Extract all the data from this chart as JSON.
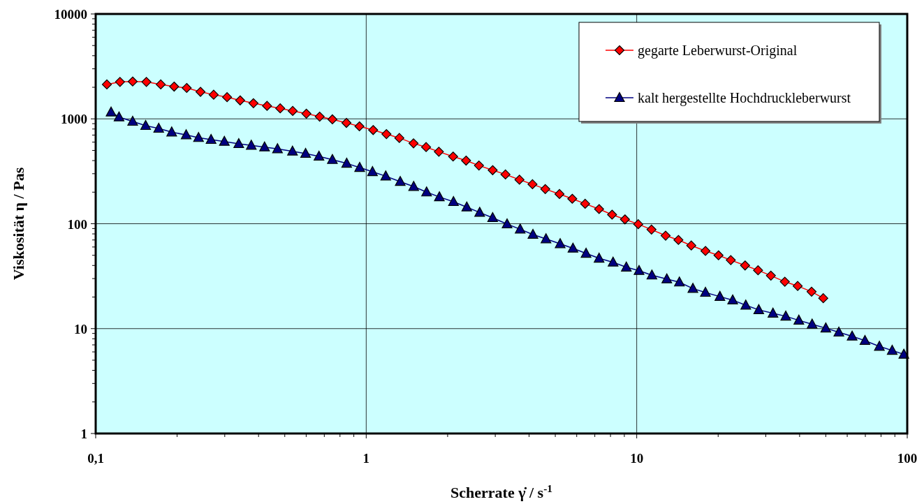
{
  "chart_data": {
    "type": "line",
    "xlabel": "Scherrate γ̇  /  s$^{-1}$",
    "ylabel": "Viskosität η / Pas",
    "log": "xy",
    "grid": true,
    "legend": "top right",
    "xlim": [
      0.1,
      100
    ],
    "xticks": [
      {
        "value": 0.1,
        "label": "0,1"
      },
      1,
      10,
      100
    ],
    "ylim": [
      1,
      10000
    ],
    "yticks": [
      1,
      10,
      100,
      1000,
      10000
    ],
    "series": [
      {
        "name": "gegarte Leberwurst-Original",
        "color": "#ff0000",
        "marker": "diamond",
        "x": [
          0.11,
          0.123,
          0.137,
          0.154,
          0.174,
          0.195,
          0.217,
          0.244,
          0.273,
          0.306,
          0.342,
          0.383,
          0.43,
          0.481,
          0.535,
          0.601,
          0.673,
          0.75,
          0.845,
          0.944,
          1.061,
          1.188,
          1.326,
          1.496,
          1.665,
          1.856,
          2.095,
          2.34,
          2.611,
          2.934,
          3.272,
          3.686,
          4.118,
          4.592,
          5.182,
          5.777,
          6.447,
          7.259,
          8.107,
          9.046,
          10.13,
          11.34,
          12.79,
          14.26,
          15.91,
          17.95,
          20.06,
          22.27,
          25.15,
          28.09,
          31.33,
          35.28,
          39.35,
          44.3,
          48.93
        ],
        "values": [
          2130,
          2250,
          2270,
          2250,
          2130,
          2030,
          1970,
          1810,
          1700,
          1610,
          1500,
          1410,
          1330,
          1260,
          1190,
          1120,
          1050,
          989,
          915,
          848,
          782,
          716,
          657,
          584,
          538,
          486,
          437,
          400,
          359,
          324,
          295,
          263,
          238,
          214,
          192,
          173,
          155,
          138,
          122,
          110,
          99,
          88,
          77,
          70,
          62,
          55,
          50,
          45,
          40,
          36,
          32,
          28,
          25.5,
          22.5,
          19.5
        ]
      },
      {
        "name": "kalt hergestellte Hochdruckleberwurst",
        "color": "#000080",
        "marker": "triangle",
        "x": [
          0.114,
          0.122,
          0.137,
          0.153,
          0.171,
          0.191,
          0.216,
          0.24,
          0.267,
          0.299,
          0.338,
          0.376,
          0.421,
          0.47,
          0.534,
          0.597,
          0.669,
          0.75,
          0.847,
          0.946,
          1.055,
          1.181,
          1.336,
          1.498,
          1.672,
          1.864,
          2.102,
          2.354,
          2.627,
          2.934,
          3.317,
          3.708,
          4.134,
          4.62,
          5.212,
          5.812,
          6.497,
          7.259,
          8.177,
          9.153,
          10.2,
          11.38,
          12.92,
          14.38,
          16.13,
          17.95,
          20.3,
          22.63,
          25.3,
          28.26,
          31.89,
          35.56,
          39.75,
          44.5,
          50.0,
          55.87,
          62.56,
          69.78,
          78.89,
          87.98,
          97.14
        ],
        "values": [
          1158,
          1040,
          944,
          861,
          810,
          747,
          702,
          661,
          634,
          608,
          578,
          558,
          538,
          517,
          491,
          467,
          439,
          408,
          376,
          343,
          313,
          284,
          252,
          226,
          200,
          180,
          162,
          144,
          128,
          114,
          99.2,
          88.7,
          78.9,
          71.6,
          64.3,
          58.3,
          52.1,
          46.8,
          42.9,
          38.5,
          35.7,
          32.3,
          29.7,
          27.7,
          24.1,
          22.1,
          20.2,
          18.7,
          16.7,
          15.1,
          14.0,
          13.1,
          12.0,
          11.0,
          10.1,
          9.23,
          8.46,
          7.68,
          6.76,
          6.19,
          5.68
        ]
      }
    ]
  }
}
